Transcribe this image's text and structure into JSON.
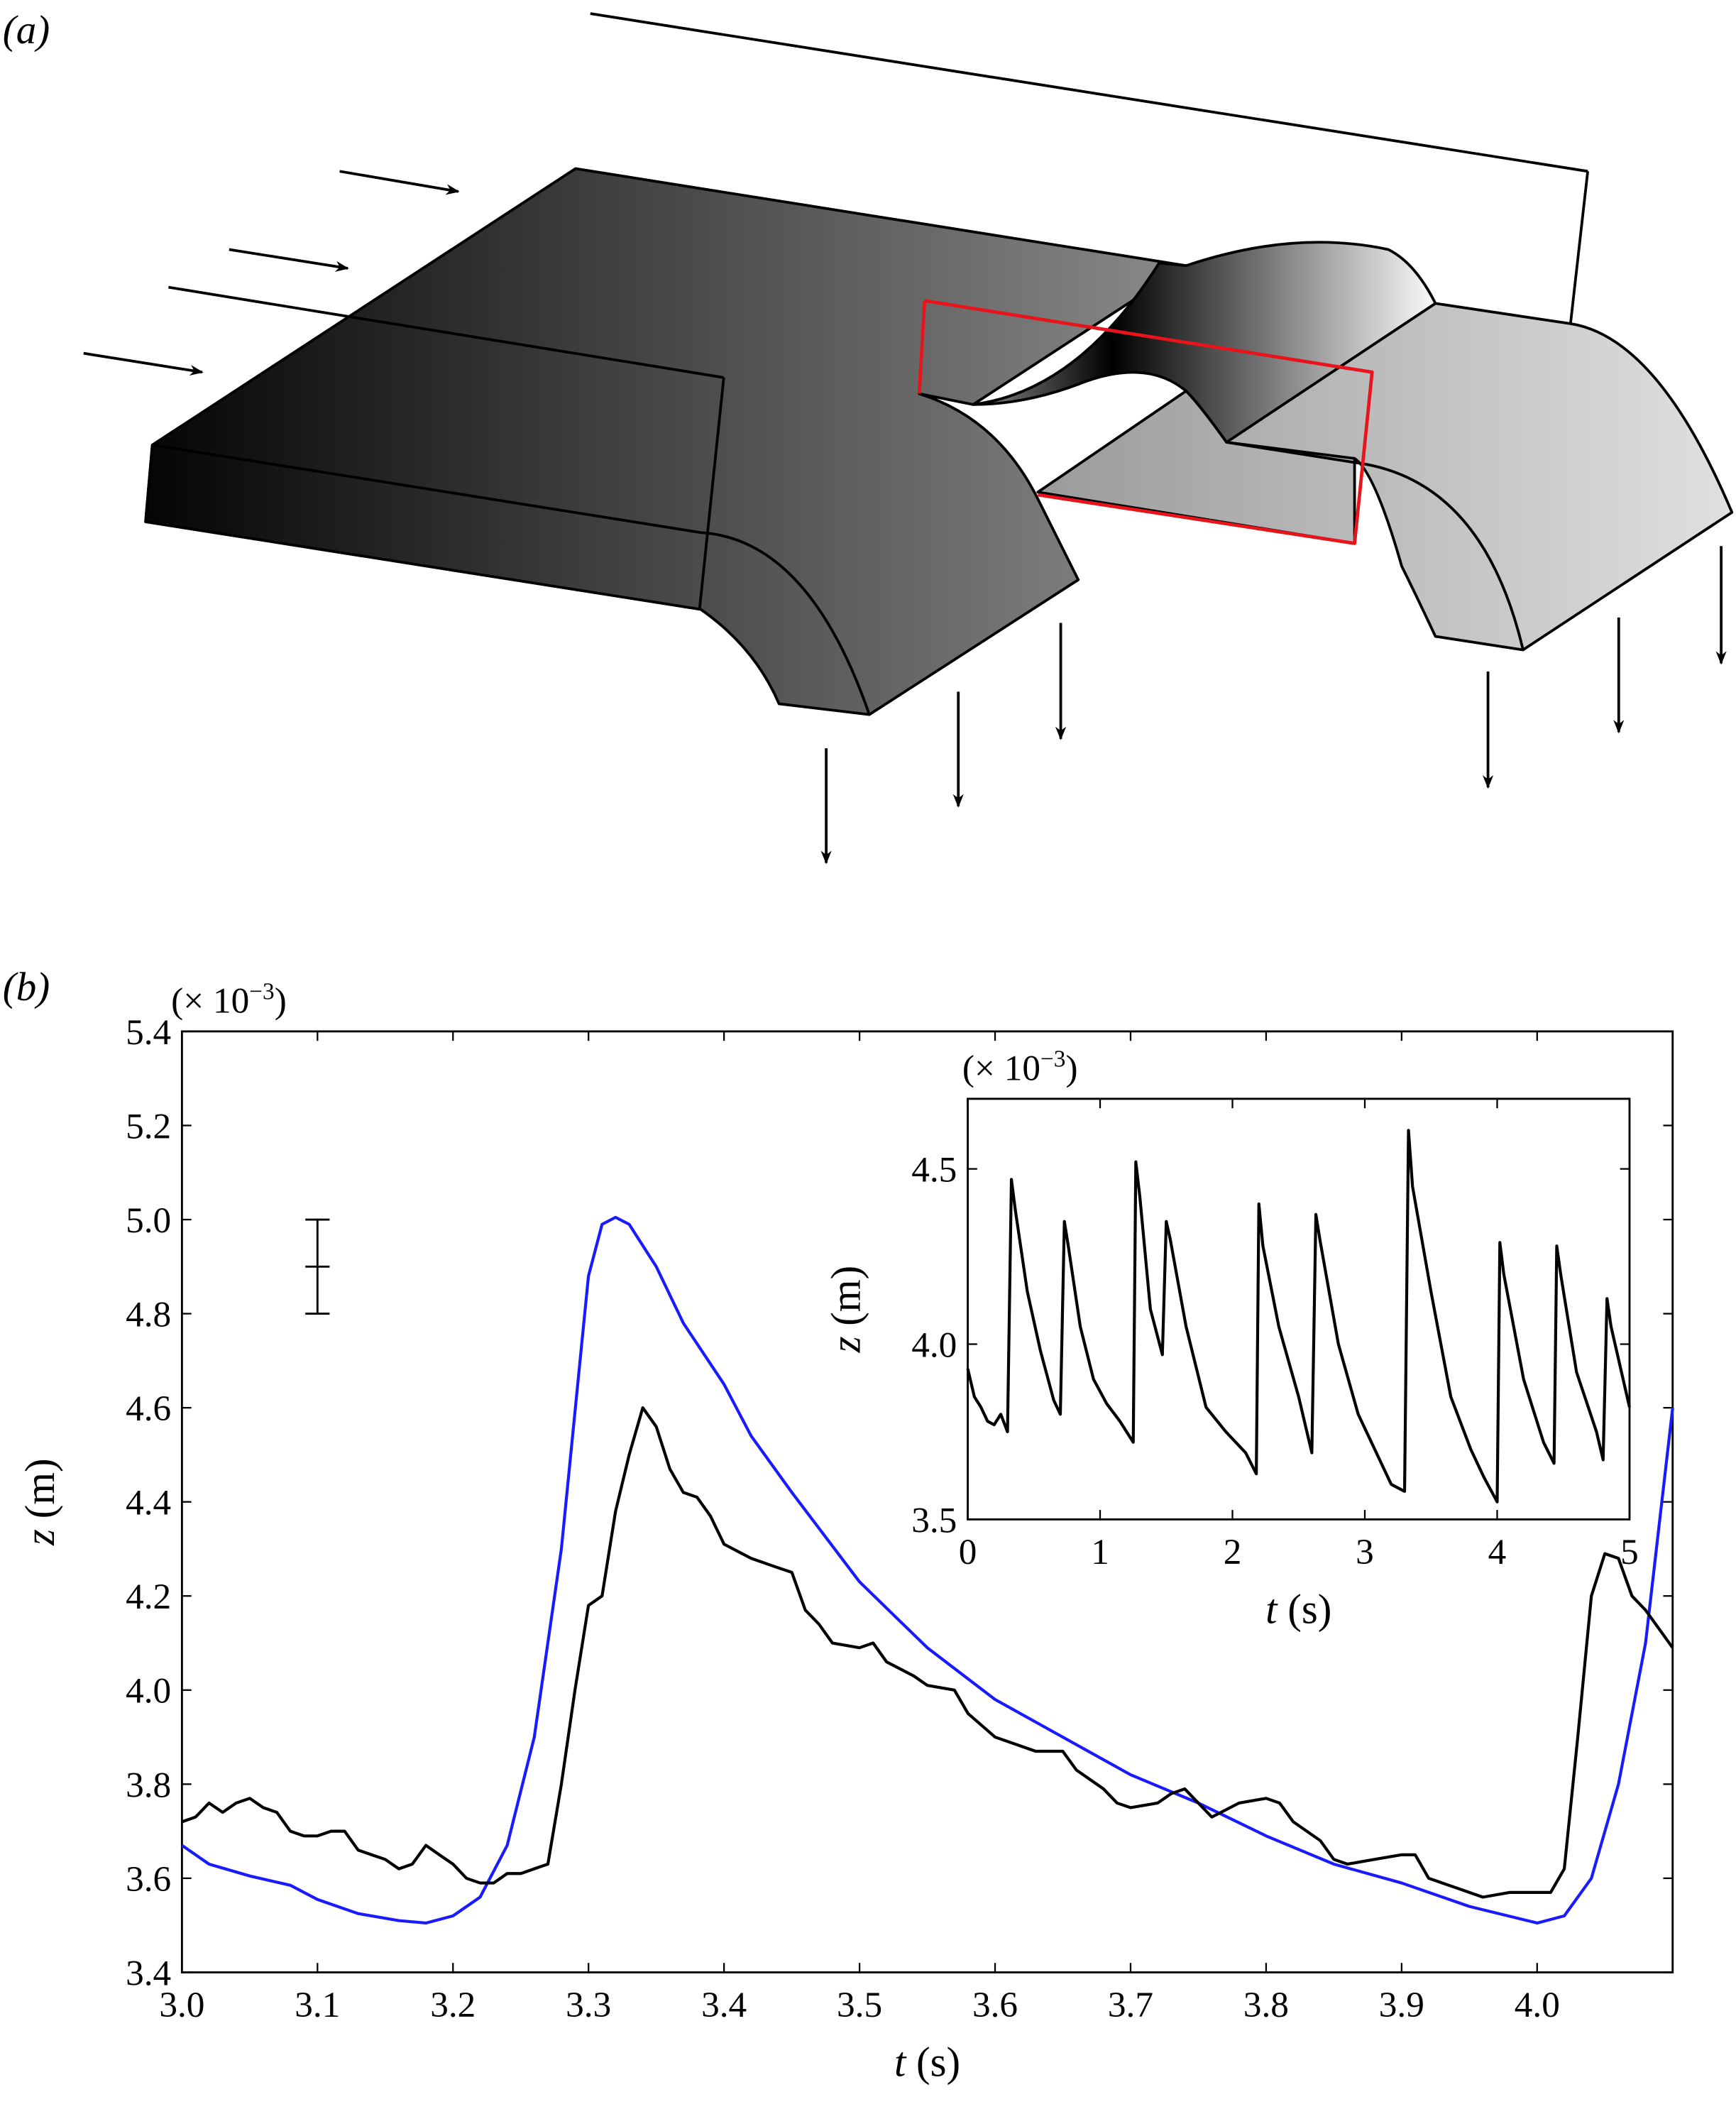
{
  "panel_a_label": "(a)",
  "panel_b_label": "(b)",
  "colors": {
    "blue": "#1a1aff",
    "black": "#000000",
    "red": "#e8141b"
  },
  "chart_data": [
    {
      "type": "line",
      "name": "main",
      "xlabel_italic": "t",
      "xlabel_unit": " (s)",
      "ylabel_italic": "z",
      "ylabel_unit": " (m)",
      "y_multiplier": "(× 10",
      "y_multiplier_exp": "−3",
      "y_multiplier_close": ")",
      "xlim": [
        3.0,
        4.1
      ],
      "ylim": [
        3.4,
        5.4
      ],
      "xticks": [
        "3.0",
        "3.1",
        "3.2",
        "3.3",
        "3.4",
        "3.5",
        "3.6",
        "3.7",
        "3.8",
        "3.9",
        "4.0"
      ],
      "yticks": [
        "3.4",
        "3.6",
        "3.8",
        "4.0",
        "4.2",
        "4.4",
        "4.6",
        "4.8",
        "5.0",
        "5.2",
        "5.4"
      ],
      "error_bar": {
        "t": 3.1,
        "center": 4.9,
        "low": 4.8,
        "high": 5.0
      },
      "series": [
        {
          "name": "blue",
          "color": "#1a1aff",
          "x": [
            3.0,
            3.02,
            3.05,
            3.08,
            3.1,
            3.13,
            3.16,
            3.18,
            3.2,
            3.22,
            3.24,
            3.26,
            3.28,
            3.3,
            3.31,
            3.32,
            3.33,
            3.35,
            3.37,
            3.4,
            3.42,
            3.45,
            3.5,
            3.55,
            3.6,
            3.65,
            3.7,
            3.75,
            3.8,
            3.85,
            3.9,
            3.95,
            4.0,
            4.02,
            4.04,
            4.06,
            4.08,
            4.1
          ],
          "y": [
            3.67,
            3.63,
            3.605,
            3.585,
            3.555,
            3.525,
            3.51,
            3.505,
            3.52,
            3.56,
            3.67,
            3.9,
            4.3,
            4.88,
            4.99,
            5.005,
            4.99,
            4.9,
            4.78,
            4.65,
            4.54,
            4.42,
            4.23,
            4.09,
            3.98,
            3.9,
            3.82,
            3.76,
            3.69,
            3.63,
            3.59,
            3.54,
            3.505,
            3.52,
            3.6,
            3.8,
            4.1,
            4.6
          ]
        },
        {
          "name": "black",
          "color": "#000000",
          "x": [
            3.0,
            3.01,
            3.02,
            3.03,
            3.04,
            3.05,
            3.06,
            3.07,
            3.08,
            3.09,
            3.1,
            3.11,
            3.12,
            3.13,
            3.14,
            3.15,
            3.16,
            3.17,
            3.18,
            3.19,
            3.2,
            3.21,
            3.22,
            3.23,
            3.24,
            3.25,
            3.26,
            3.27,
            3.28,
            3.29,
            3.3,
            3.31,
            3.32,
            3.33,
            3.34,
            3.35,
            3.36,
            3.37,
            3.38,
            3.39,
            3.4,
            3.42,
            3.44,
            3.45,
            3.46,
            3.47,
            3.48,
            3.5,
            3.51,
            3.52,
            3.54,
            3.55,
            3.57,
            3.58,
            3.6,
            3.62,
            3.63,
            3.65,
            3.66,
            3.68,
            3.69,
            3.7,
            3.72,
            3.73,
            3.74,
            3.76,
            3.78,
            3.8,
            3.81,
            3.82,
            3.84,
            3.85,
            3.86,
            3.88,
            3.9,
            3.91,
            3.92,
            3.94,
            3.96,
            3.98,
            4.0,
            4.01,
            4.02,
            4.03,
            4.04,
            4.05,
            4.06,
            4.07,
            4.08,
            4.1
          ],
          "y": [
            3.72,
            3.73,
            3.76,
            3.74,
            3.76,
            3.77,
            3.75,
            3.74,
            3.7,
            3.69,
            3.69,
            3.7,
            3.7,
            3.66,
            3.65,
            3.64,
            3.62,
            3.63,
            3.67,
            3.65,
            3.63,
            3.6,
            3.59,
            3.59,
            3.61,
            3.61,
            3.62,
            3.63,
            3.8,
            4.0,
            4.18,
            4.2,
            4.38,
            4.5,
            4.6,
            4.56,
            4.47,
            4.42,
            4.41,
            4.37,
            4.31,
            4.28,
            4.26,
            4.25,
            4.17,
            4.14,
            4.1,
            4.09,
            4.1,
            4.06,
            4.03,
            4.01,
            4.0,
            3.95,
            3.9,
            3.88,
            3.87,
            3.87,
            3.83,
            3.79,
            3.76,
            3.75,
            3.76,
            3.78,
            3.79,
            3.73,
            3.76,
            3.77,
            3.76,
            3.72,
            3.68,
            3.64,
            3.63,
            3.64,
            3.65,
            3.65,
            3.6,
            3.58,
            3.56,
            3.57,
            3.57,
            3.57,
            3.62,
            3.9,
            4.2,
            4.29,
            4.28,
            4.2,
            4.17,
            4.09
          ]
        }
      ]
    },
    {
      "type": "line",
      "name": "inset",
      "xlabel_italic": "t",
      "xlabel_unit": " (s)",
      "ylabel_italic": "z",
      "ylabel_unit": " (m)",
      "y_multiplier": "(× 10",
      "y_multiplier_exp": "−3",
      "y_multiplier_close": ")",
      "xlim": [
        0,
        5
      ],
      "ylim": [
        3.5,
        4.7
      ],
      "xticks": [
        "0",
        "1",
        "2",
        "3",
        "4",
        "5"
      ],
      "yticks": [
        "3.5",
        "4.0",
        "4.5"
      ],
      "series": [
        {
          "name": "black",
          "color": "#000000",
          "x": [
            0,
            0.05,
            0.1,
            0.15,
            0.2,
            0.25,
            0.3,
            0.33,
            0.36,
            0.45,
            0.55,
            0.65,
            0.7,
            0.73,
            0.76,
            0.85,
            0.95,
            1.05,
            1.15,
            1.25,
            1.27,
            1.3,
            1.38,
            1.47,
            1.5,
            1.53,
            1.65,
            1.8,
            1.95,
            2.1,
            2.18,
            2.2,
            2.23,
            2.35,
            2.5,
            2.6,
            2.63,
            2.66,
            2.8,
            2.95,
            3.1,
            3.2,
            3.3,
            3.33,
            3.36,
            3.5,
            3.65,
            3.8,
            3.9,
            4.0,
            4.02,
            4.05,
            4.2,
            4.35,
            4.43,
            4.45,
            4.48,
            4.6,
            4.75,
            4.8,
            4.83,
            4.86,
            5.0
          ],
          "y": [
            3.93,
            3.85,
            3.82,
            3.78,
            3.77,
            3.8,
            3.75,
            4.47,
            4.38,
            4.15,
            3.98,
            3.84,
            3.8,
            4.35,
            4.28,
            4.05,
            3.9,
            3.83,
            3.78,
            3.72,
            4.52,
            4.42,
            4.1,
            3.97,
            4.35,
            4.3,
            4.05,
            3.82,
            3.75,
            3.69,
            3.63,
            4.4,
            4.28,
            4.05,
            3.85,
            3.69,
            4.37,
            4.3,
            4.0,
            3.8,
            3.68,
            3.6,
            3.58,
            4.61,
            4.45,
            4.15,
            3.85,
            3.7,
            3.62,
            3.55,
            4.29,
            4.2,
            3.9,
            3.72,
            3.66,
            4.28,
            4.2,
            3.92,
            3.75,
            3.67,
            4.13,
            4.05,
            3.82
          ]
        }
      ]
    }
  ]
}
